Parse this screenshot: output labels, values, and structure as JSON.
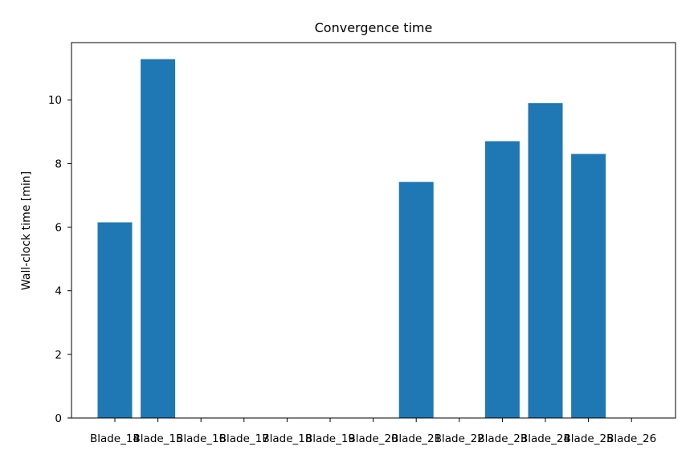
{
  "chart_data": {
    "type": "bar",
    "title": "Convergence time",
    "xlabel": "",
    "ylabel": "Wall-clock time [min]",
    "categories": [
      "Blade_14",
      "Blade_15",
      "Blade_16",
      "Blade_17",
      "Blade_18",
      "Blade_19",
      "Blade_20",
      "Blade_21",
      "Blade_22",
      "Blade_23",
      "Blade_24",
      "Blade_25",
      "Blade_26"
    ],
    "values": [
      6.15,
      11.28,
      0,
      0,
      0,
      0,
      0,
      7.42,
      0,
      8.7,
      9.9,
      8.3,
      0
    ],
    "ylim": [
      0,
      11.8
    ],
    "yticks": [
      0,
      2,
      4,
      6,
      8,
      10
    ],
    "bar_color": "#1f77b4",
    "grid": false,
    "legend": "none"
  }
}
